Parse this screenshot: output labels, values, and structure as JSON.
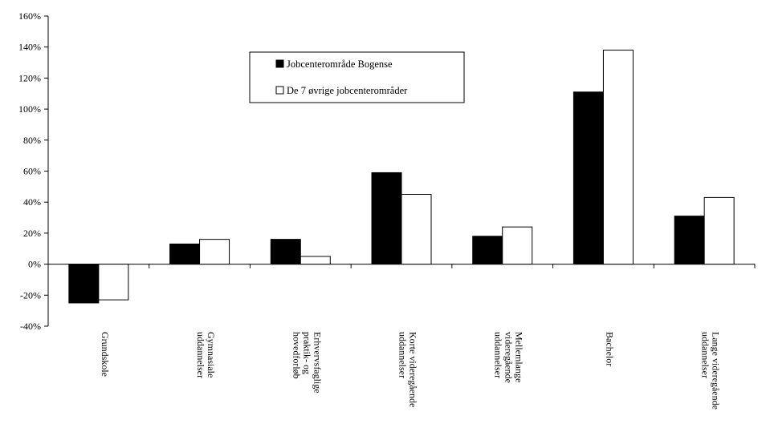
{
  "chart_data": {
    "type": "bar",
    "categories": [
      [
        "Grundskole"
      ],
      [
        "Gymnasiale",
        "uddannelser"
      ],
      [
        "Erhvervsfaglige",
        "praktik- og",
        "hovedforløb"
      ],
      [
        "Korte videregående",
        "uddannelser"
      ],
      [
        "Mellemlange",
        "videregående",
        "uddannelser"
      ],
      [
        "Bachelor"
      ],
      [
        "Lange videregående",
        "uddannelser"
      ]
    ],
    "series": [
      {
        "name": "Jobcenterområde Bogense",
        "color": "#000000",
        "values": [
          -25,
          13,
          16,
          59,
          18,
          111,
          31
        ]
      },
      {
        "name": "De 7 øvrige jobcenterområder",
        "color": "#ffffff",
        "values": [
          -23,
          16,
          5,
          45,
          24,
          138,
          43
        ]
      }
    ],
    "ylim": [
      -40,
      160
    ],
    "yticks": [
      -40,
      -20,
      0,
      20,
      40,
      60,
      80,
      100,
      120,
      140,
      160
    ],
    "ytick_labels": [
      "-40%",
      "-20%",
      "0%",
      "20%",
      "40%",
      "60%",
      "80%",
      "100%",
      "120%",
      "140%",
      "160%"
    ],
    "legend_position": "top-center",
    "grid": false,
    "title": "",
    "xlabel": "",
    "ylabel": ""
  }
}
